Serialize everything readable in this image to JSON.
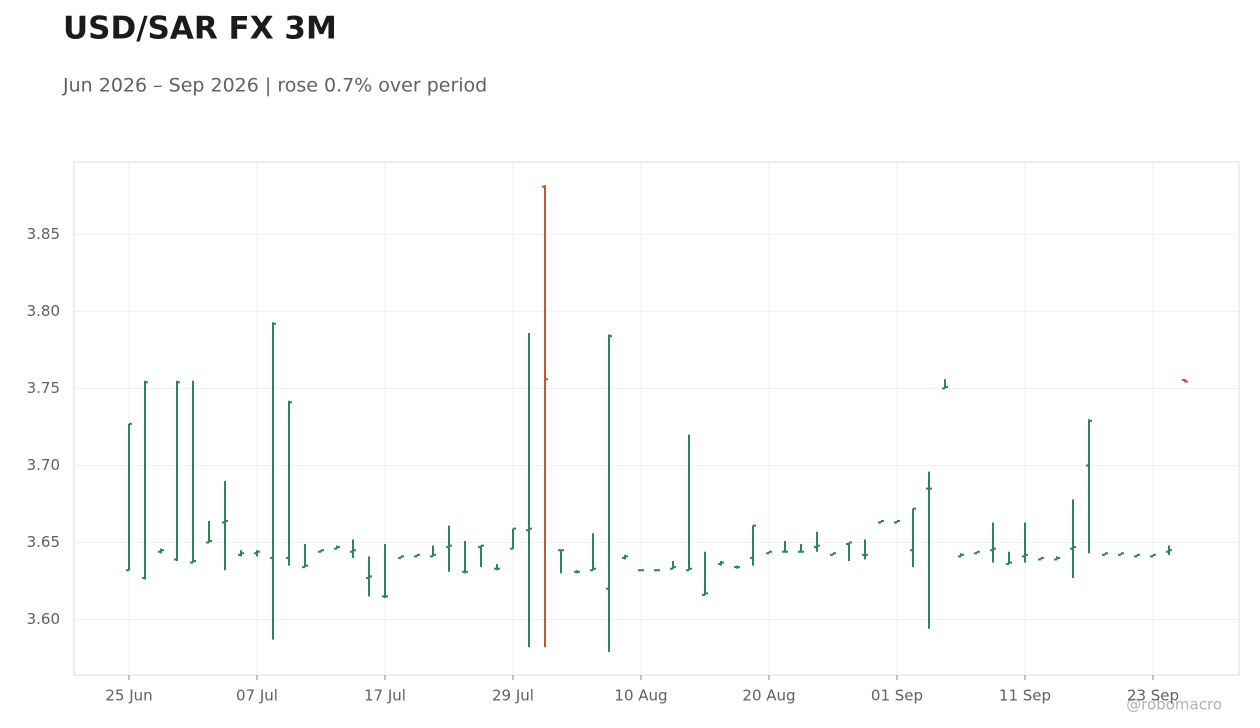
{
  "chart_data": {
    "type": "ohlc",
    "title": "USD/SAR FX 3M",
    "subtitle": "Jun 2026 – Sep 2026 | rose 0.7% over period",
    "watermark": "@robomacro",
    "categories": [
      "25 Jun",
      null,
      null,
      null,
      null,
      null,
      null,
      null,
      "07 Jul",
      null,
      null,
      null,
      null,
      null,
      null,
      null,
      "17 Jul",
      null,
      null,
      null,
      null,
      null,
      null,
      null,
      "29 Jul",
      null,
      null,
      null,
      null,
      null,
      null,
      null,
      "10 Aug",
      null,
      null,
      null,
      null,
      null,
      null,
      null,
      "20 Aug",
      null,
      null,
      null,
      null,
      null,
      null,
      null,
      "01 Sep",
      null,
      null,
      null,
      null,
      null,
      null,
      null,
      "11 Sep",
      null,
      null,
      null,
      null,
      null,
      null,
      null,
      "23 Sep",
      null,
      null
    ],
    "open": [
      3.632,
      3.627,
      3.644,
      3.639,
      3.637,
      3.65,
      3.663,
      3.642,
      3.643,
      3.64,
      3.64,
      3.634,
      3.644,
      3.646,
      3.644,
      3.627,
      3.615,
      3.64,
      3.641,
      3.641,
      3.647,
      3.631,
      3.647,
      3.633,
      3.646,
      3.658,
      3.881,
      3.645,
      3.631,
      3.632,
      3.62,
      3.64,
      3.632,
      3.632,
      3.633,
      3.632,
      3.616,
      3.636,
      3.634,
      3.64,
      3.643,
      3.644,
      3.644,
      3.647,
      3.642,
      3.649,
      3.642,
      3.663,
      3.663,
      3.645,
      3.685,
      3.75,
      3.641,
      3.643,
      3.645,
      3.636,
      3.641,
      3.639,
      3.639,
      3.646,
      3.7,
      3.642,
      3.642,
      3.641,
      3.641,
      3.644,
      3.7555
    ],
    "high": [
      3.727,
      3.755,
      3.646,
      3.755,
      3.755,
      3.664,
      3.69,
      3.645,
      3.645,
      3.793,
      3.742,
      3.649,
      3.645,
      3.648,
      3.652,
      3.641,
      3.649,
      3.641,
      3.642,
      3.648,
      3.661,
      3.651,
      3.648,
      3.636,
      3.659,
      3.786,
      3.882,
      3.645,
      3.632,
      3.656,
      3.785,
      3.642,
      3.632,
      3.632,
      3.638,
      3.72,
      3.644,
      3.638,
      3.635,
      3.661,
      3.644,
      3.651,
      3.649,
      3.657,
      3.643,
      3.65,
      3.652,
      3.664,
      3.664,
      3.672,
      3.696,
      3.756,
      3.643,
      3.644,
      3.663,
      3.644,
      3.663,
      3.64,
      3.641,
      3.678,
      3.73,
      3.643,
      3.643,
      3.642,
      3.642,
      3.648,
      3.756
    ],
    "low": [
      3.632,
      3.626,
      3.643,
      3.638,
      3.637,
      3.65,
      3.632,
      3.641,
      3.641,
      3.587,
      3.635,
      3.634,
      3.644,
      3.646,
      3.64,
      3.615,
      3.614,
      3.64,
      3.641,
      3.641,
      3.631,
      3.63,
      3.634,
      3.632,
      3.646,
      3.582,
      3.582,
      3.63,
      3.63,
      3.632,
      3.579,
      3.639,
      3.632,
      3.632,
      3.633,
      3.632,
      3.616,
      3.635,
      3.633,
      3.635,
      3.643,
      3.644,
      3.644,
      3.644,
      3.642,
      3.638,
      3.639,
      3.663,
      3.663,
      3.634,
      3.594,
      3.75,
      3.641,
      3.643,
      3.637,
      3.636,
      3.637,
      3.639,
      3.639,
      3.627,
      3.643,
      3.642,
      3.642,
      3.641,
      3.641,
      3.642,
      3.754
    ],
    "close": [
      3.727,
      3.754,
      3.645,
      3.754,
      3.638,
      3.651,
      3.664,
      3.643,
      3.644,
      3.792,
      3.741,
      3.635,
      3.645,
      3.647,
      3.645,
      3.628,
      3.615,
      3.641,
      3.642,
      3.642,
      3.648,
      3.631,
      3.648,
      3.633,
      3.659,
      3.659,
      3.756,
      3.645,
      3.631,
      3.633,
      3.784,
      3.641,
      3.632,
      3.632,
      3.634,
      3.633,
      3.617,
      3.637,
      3.634,
      3.661,
      3.644,
      3.644,
      3.644,
      3.648,
      3.643,
      3.65,
      3.642,
      3.664,
      3.664,
      3.672,
      3.685,
      3.751,
      3.642,
      3.644,
      3.646,
      3.637,
      3.642,
      3.64,
      3.64,
      3.647,
      3.729,
      3.643,
      3.643,
      3.642,
      3.642,
      3.645,
      3.7545
    ],
    "up_color": "#2e8555",
    "down_color": "#c4553a",
    "ylim": [
      3.564,
      3.897
    ],
    "yticks": [
      {
        "value": 3.6,
        "label": "3.60"
      },
      3.65,
      {
        "value": 3.7,
        "label": "3.70"
      },
      3.75,
      {
        "value": 3.8,
        "label": "3.80"
      },
      3.85
    ],
    "grid": true
  }
}
